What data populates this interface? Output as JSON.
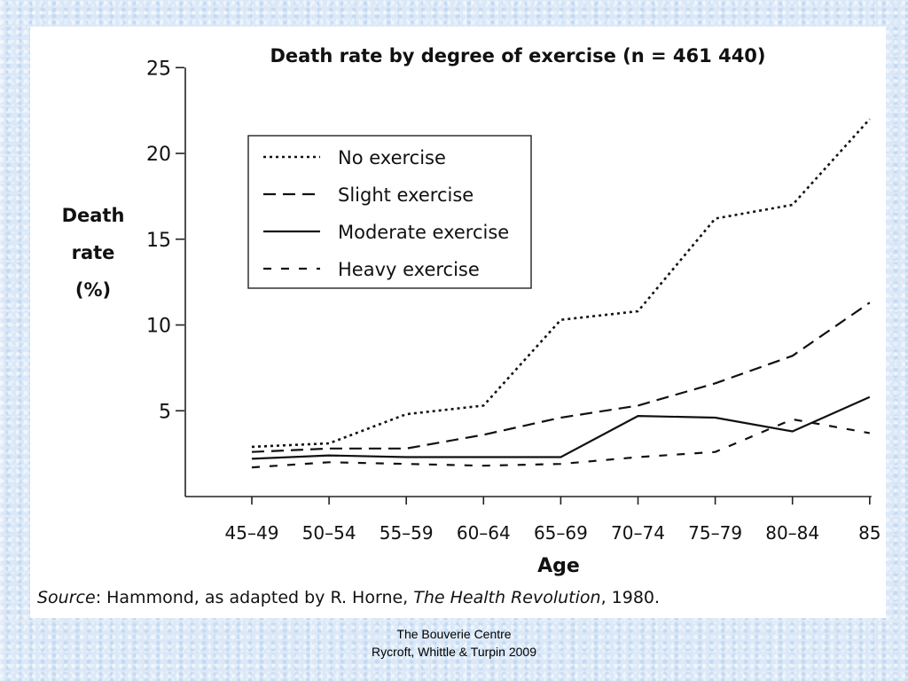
{
  "chart_data": {
    "type": "line",
    "title": "Death rate by degree of exercise (n = 461 440)",
    "xlabel": "Age",
    "ylabel_lines": [
      "Death",
      "rate",
      "(%)"
    ],
    "categories": [
      "45–49",
      "50–54",
      "55–59",
      "60–64",
      "65–69",
      "70–74",
      "75–79",
      "80–84",
      "85"
    ],
    "yticks": [
      5,
      10,
      15,
      20,
      25
    ],
    "ylim": [
      0,
      25
    ],
    "legend_position": "top-left",
    "grid": false,
    "series": [
      {
        "name": "No exercise",
        "style": "dotted",
        "values": [
          2.9,
          3.1,
          4.8,
          5.3,
          10.3,
          10.8,
          16.2,
          17.0,
          22.0
        ]
      },
      {
        "name": "Slight exercise",
        "style": "dashed",
        "values": [
          2.6,
          2.8,
          2.8,
          3.6,
          4.6,
          5.3,
          6.6,
          8.2,
          11.3
        ]
      },
      {
        "name": "Moderate exercise",
        "style": "solid",
        "values": [
          2.2,
          2.4,
          2.3,
          2.3,
          2.3,
          4.7,
          4.6,
          3.8,
          5.8
        ]
      },
      {
        "name": "Heavy exercise",
        "style": "dash-dot",
        "values": [
          1.7,
          2.0,
          1.9,
          1.8,
          1.9,
          2.3,
          2.6,
          4.5,
          3.7
        ]
      }
    ],
    "source": {
      "prefix": "Source",
      "text1": ": Hammond, as adapted by R. Horne, ",
      "italic": "The Health Revolution",
      "text2": ", 1980."
    }
  },
  "footer": {
    "line1": "The Bouverie Centre",
    "line2": "Rycroft, Whittle & Turpin 2009"
  }
}
